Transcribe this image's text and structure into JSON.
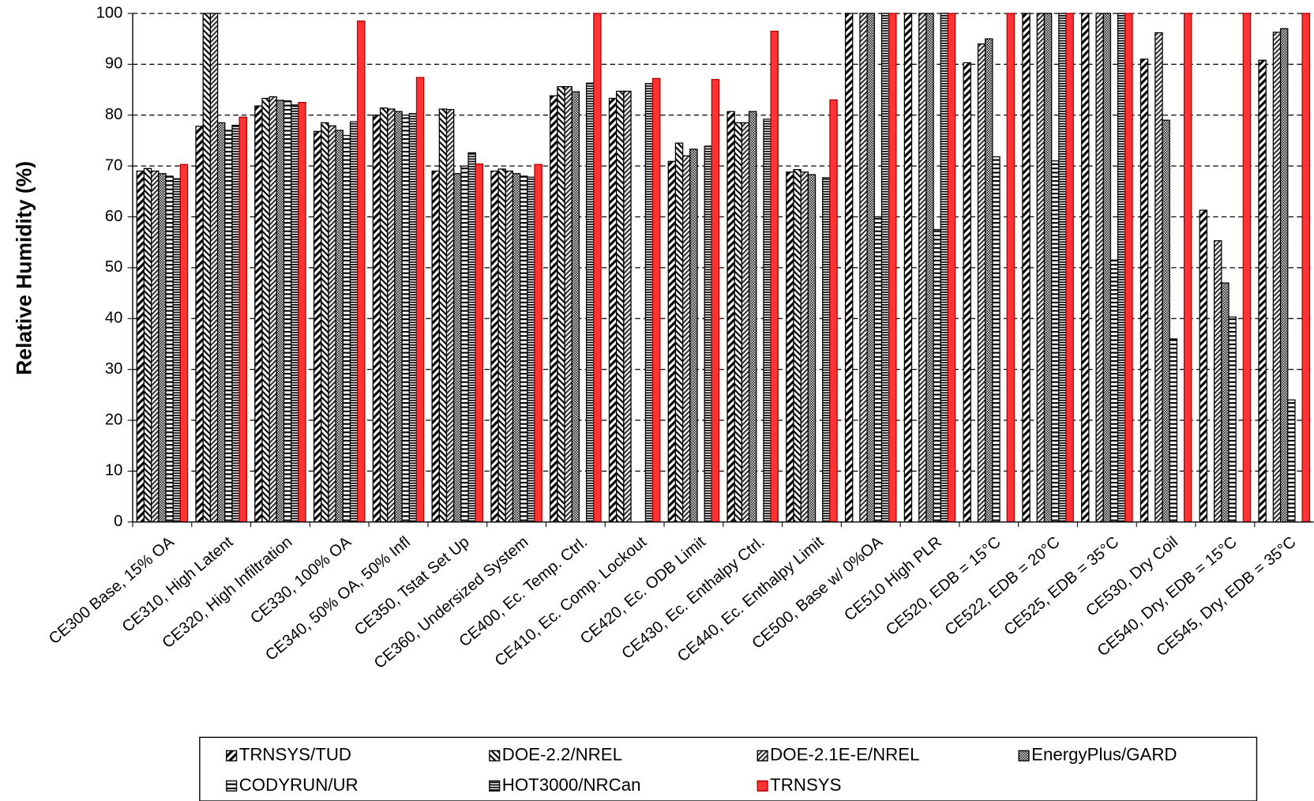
{
  "chart_data": {
    "type": "bar",
    "y_label": "Relative Humidity (%)",
    "categories": [
      "CE300 Base, 15% OA",
      "CE310, High Latent",
      "CE320, High Infiltration",
      "CE330, 100% OA",
      "CE340, 50% OA, 50% Infl",
      "CE350, Tstat Set Up",
      "CE360, Undersized System",
      "CE400, Ec. Temp. Ctrl.",
      "CE410, Ec. Comp. Lockout",
      "CE420, Ec. ODB Limit",
      "CE430, Ec. Enthalpy Ctrl.",
      "CE440, Ec. Enthalpy Limit",
      "CE500, Base w/ 0%OA",
      "CE510  High PLR",
      "CE520, EDB = 15°C",
      "CE522, EDB = 20°C",
      "CE525, EDB = 35°C",
      "CE530, Dry Coil",
      "CE540, Dry, EDB = 15°C",
      "CE545, Dry, EDB = 35°C"
    ],
    "series": [
      {
        "name": "TRNSYS/TUD",
        "color": "#000000",
        "values": [
          69,
          77.8,
          81.8,
          76.8,
          80,
          69,
          69,
          83.8,
          83.3,
          70.9,
          80.7,
          68.8,
          100,
          100,
          90.3,
          100,
          100,
          91,
          61.3,
          90.8
        ]
      },
      {
        "name": "DOE-2.2/NREL",
        "color": "#000000",
        "values": [
          69.5,
          100,
          83.3,
          78.5,
          81.4,
          81.2,
          69.4,
          85.6,
          84.7,
          74.5,
          78.5,
          69.3,
          null,
          null,
          null,
          null,
          null,
          null,
          null,
          null
        ]
      },
      {
        "name": "DOE-2.1E-E/NREL",
        "color": "#000000",
        "values": [
          69,
          100,
          83.6,
          77.9,
          81.2,
          81.1,
          69,
          85.6,
          84.7,
          72,
          78.5,
          68.8,
          100,
          100,
          94,
          100,
          100,
          96.2,
          55.3,
          96.3
        ]
      },
      {
        "name": "EnergyPlus/GARD",
        "color": "#000000",
        "values": [
          68.5,
          78.5,
          82.9,
          77,
          80.7,
          68.5,
          68.5,
          84.6,
          null,
          73.3,
          80.7,
          68.3,
          100,
          100,
          95,
          100,
          100,
          79,
          47,
          97
        ]
      },
      {
        "name": "CODYRUN/UR",
        "color": "#000000",
        "values": [
          68,
          77,
          82.8,
          76,
          80,
          70,
          68,
          null,
          null,
          null,
          null,
          null,
          60,
          57.5,
          71.8,
          71,
          51.5,
          36,
          40.3,
          24
        ]
      },
      {
        "name": "HOT3000/NRCan",
        "color": "#000000",
        "values": [
          67.5,
          78,
          82,
          78.7,
          80.3,
          72.6,
          67.8,
          86.3,
          86.2,
          73.9,
          79.2,
          67.7,
          100,
          100,
          null,
          100,
          100,
          null,
          null,
          null
        ]
      },
      {
        "name": "TRNSYS",
        "color": "#ff3333",
        "values": [
          70.3,
          79.6,
          82.5,
          98.5,
          87.4,
          70.4,
          70.3,
          100,
          87.2,
          87,
          96.5,
          83,
          100,
          100,
          100,
          100,
          100,
          100,
          100,
          100
        ]
      }
    ],
    "ylim": [
      0,
      100
    ],
    "yticks": [
      0,
      10,
      20,
      30,
      40,
      50,
      60,
      70,
      80,
      90,
      100
    ],
    "grid": true
  }
}
